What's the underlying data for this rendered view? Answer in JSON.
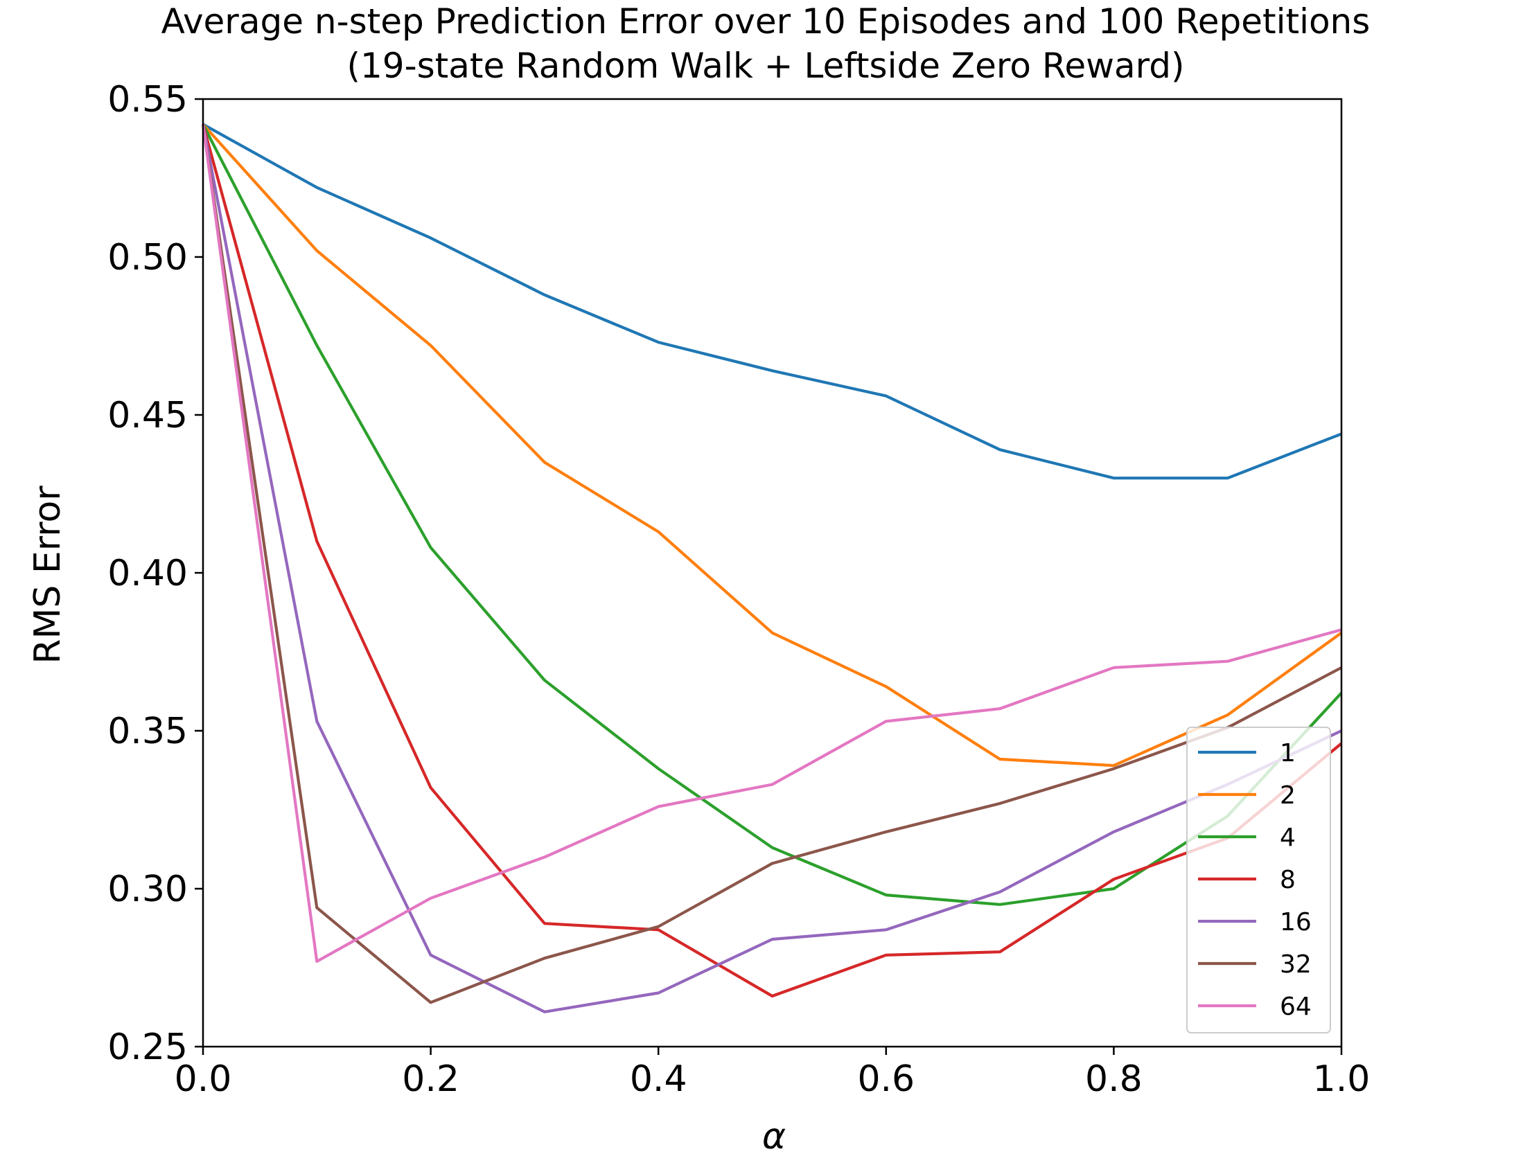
{
  "chart_data": {
    "type": "line",
    "title": "Average n-step Prediction Error over 10 Episodes and 100 Repetitions",
    "subtitle": "(19-state Random Walk + Leftside Zero Reward)",
    "xlabel": "α",
    "ylabel": "RMS Error",
    "xlim": [
      0.0,
      1.0
    ],
    "ylim": [
      0.25,
      0.55
    ],
    "xticks": [
      "0.0",
      "0.2",
      "0.4",
      "0.6",
      "0.8",
      "1.0"
    ],
    "yticks": [
      "0.25",
      "0.30",
      "0.35",
      "0.40",
      "0.45",
      "0.50",
      "0.55"
    ],
    "grid": false,
    "legend_position": "bottom-right",
    "x": [
      0.0,
      0.1,
      0.2,
      0.3,
      0.4,
      0.5,
      0.6,
      0.7,
      0.8,
      0.9,
      1.0
    ],
    "series": [
      {
        "name": "1",
        "color": "#1f77b4",
        "values": [
          0.542,
          0.522,
          0.506,
          0.488,
          0.473,
          0.464,
          0.456,
          0.439,
          0.43,
          0.43,
          0.444
        ]
      },
      {
        "name": "2",
        "color": "#ff7f0e",
        "values": [
          0.542,
          0.502,
          0.472,
          0.435,
          0.413,
          0.381,
          0.364,
          0.341,
          0.339,
          0.355,
          0.381
        ]
      },
      {
        "name": "4",
        "color": "#2ca02c",
        "values": [
          0.542,
          0.472,
          0.408,
          0.366,
          0.338,
          0.313,
          0.298,
          0.295,
          0.3,
          0.323,
          0.362
        ]
      },
      {
        "name": "8",
        "color": "#d62728",
        "values": [
          0.542,
          0.41,
          0.332,
          0.289,
          0.287,
          0.266,
          0.279,
          0.28,
          0.303,
          0.316,
          0.346
        ]
      },
      {
        "name": "16",
        "color": "#9467bd",
        "values": [
          0.542,
          0.353,
          0.279,
          0.261,
          0.267,
          0.284,
          0.287,
          0.299,
          0.318,
          0.333,
          0.35
        ]
      },
      {
        "name": "32",
        "color": "#8c564b",
        "values": [
          0.542,
          0.294,
          0.264,
          0.278,
          0.288,
          0.308,
          0.318,
          0.327,
          0.338,
          0.351,
          0.37
        ]
      },
      {
        "name": "64",
        "color": "#e377c2",
        "values": [
          0.542,
          0.277,
          0.297,
          0.31,
          0.326,
          0.333,
          0.353,
          0.357,
          0.37,
          0.372,
          0.382
        ]
      }
    ]
  }
}
